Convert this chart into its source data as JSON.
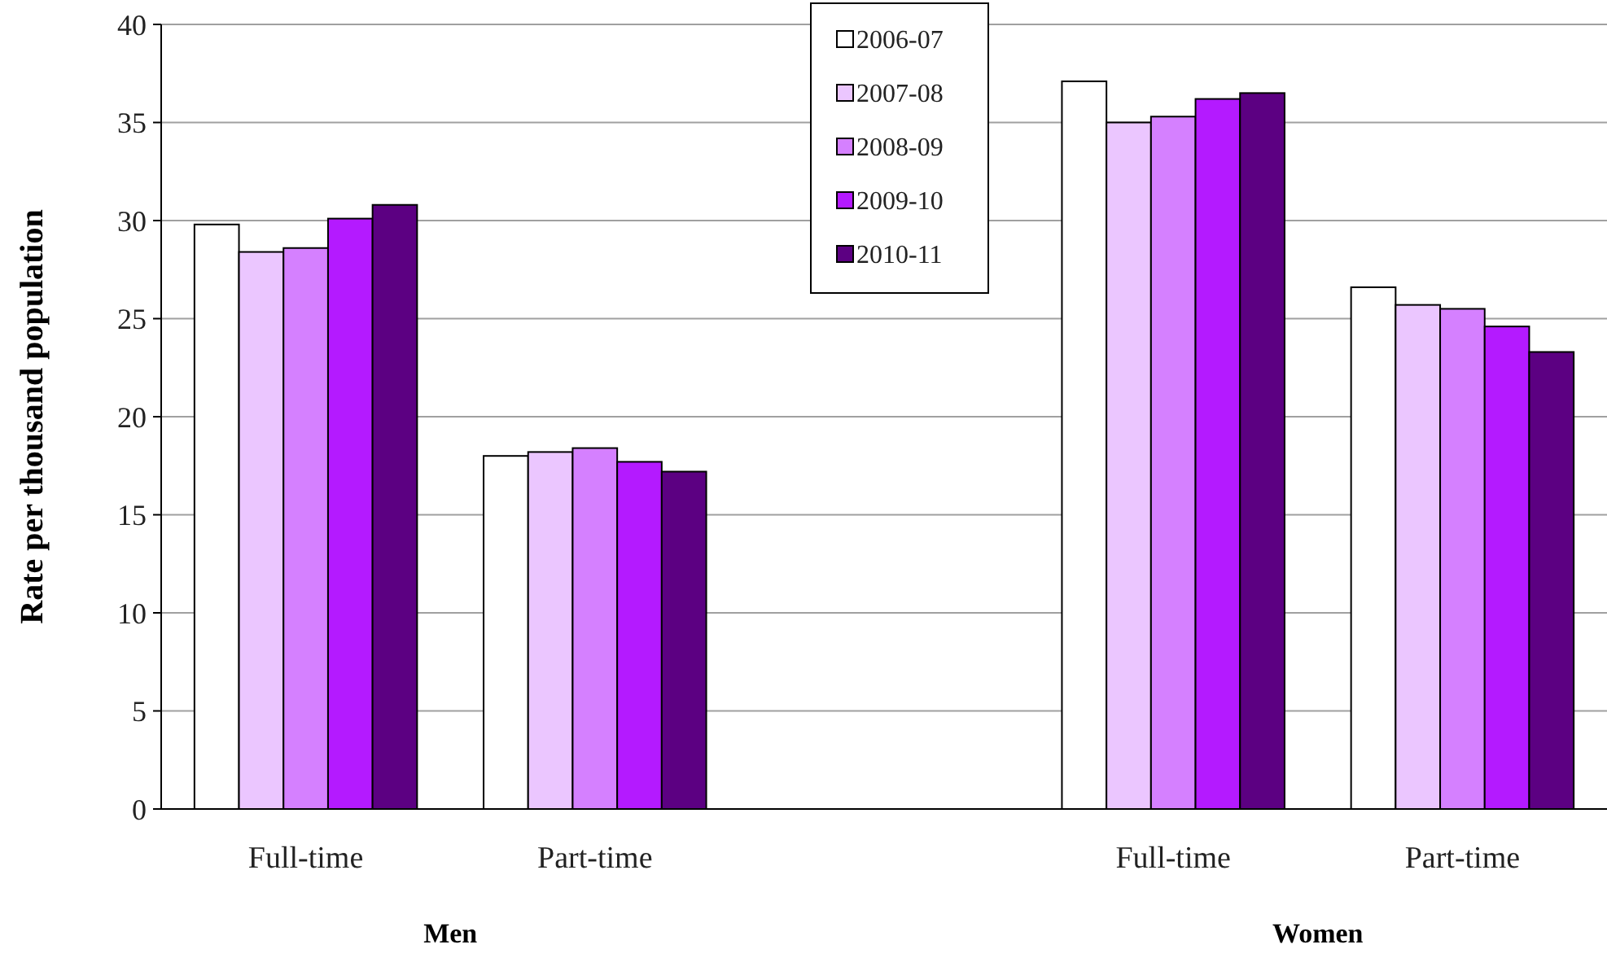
{
  "chart_data": {
    "type": "bar",
    "ylabel": "Rate per thousand population",
    "categories": [
      "Full-time",
      "Part-time",
      null,
      "Full-time",
      "Part-time"
    ],
    "series": [
      {
        "name": "2006-07",
        "color": "#ffffff",
        "values": [
          29.8,
          18.0,
          null,
          37.1,
          26.6
        ]
      },
      {
        "name": "2007-08",
        "color": "#ebc6ff",
        "values": [
          28.4,
          18.2,
          null,
          35.0,
          25.7
        ]
      },
      {
        "name": "2008-09",
        "color": "#d580ff",
        "values": [
          28.6,
          18.4,
          null,
          35.3,
          25.5
        ]
      },
      {
        "name": "2009-10",
        "color": "#b41aff",
        "values": [
          30.1,
          17.7,
          null,
          36.2,
          24.6
        ]
      },
      {
        "name": "2010-11",
        "color": "#5c0082",
        "values": [
          30.8,
          17.2,
          null,
          36.5,
          23.3
        ]
      }
    ],
    "annotations": [
      "Men",
      "Women"
    ],
    "ylim": [
      0,
      40
    ],
    "yticks": [
      0,
      5,
      10,
      15,
      20,
      25,
      30,
      35,
      40
    ],
    "grid": "y",
    "legend": "top"
  }
}
